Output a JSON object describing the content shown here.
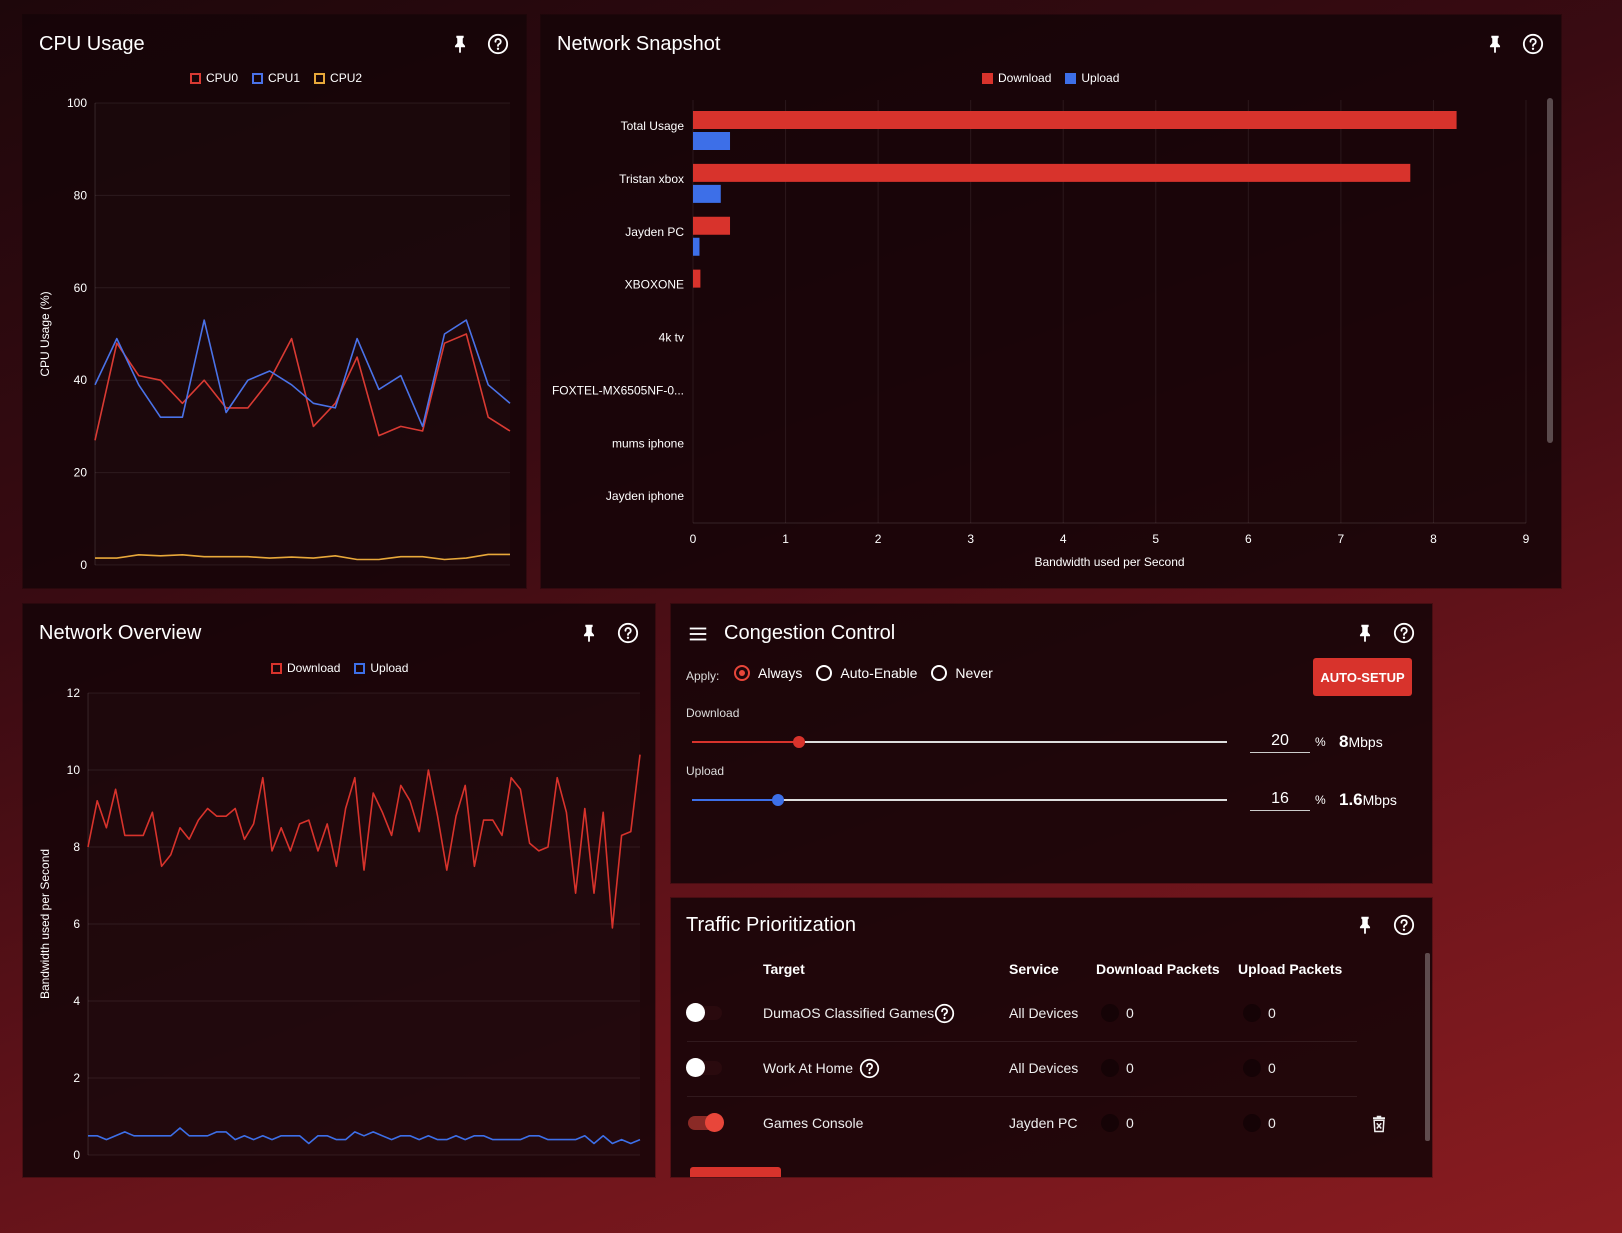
{
  "cpu": {
    "title": "CPU Usage",
    "chart_data": {
      "type": "line",
      "title": "",
      "xlabel": "",
      "ylabel": "CPU Usage (%)",
      "ylim": [
        0,
        100
      ],
      "yticks": [
        "0",
        "20",
        "40",
        "60",
        "80",
        "100"
      ],
      "legend_position": "top",
      "series": [
        {
          "name": "CPU0",
          "color": "#d93a33",
          "values": [
            27,
            48,
            41,
            40,
            35,
            40,
            34,
            34,
            40,
            49,
            30,
            35,
            45,
            28,
            30,
            29,
            48,
            50,
            32,
            29
          ]
        },
        {
          "name": "CPU1",
          "color": "#4a72e8",
          "values": [
            39,
            49,
            39,
            32,
            32,
            53,
            33,
            40,
            42,
            39,
            35,
            34,
            49,
            38,
            41,
            30,
            50,
            53,
            39,
            35
          ]
        },
        {
          "name": "CPU2",
          "color": "#e8a83a",
          "values": [
            1.5,
            1.5,
            2.2,
            2.0,
            2.2,
            1.8,
            1.8,
            1.8,
            1.5,
            1.7,
            1.5,
            2.0,
            1.2,
            1.2,
            1.8,
            1.8,
            1.2,
            1.5,
            2.3,
            2.3
          ]
        }
      ]
    }
  },
  "snapshot": {
    "title": "Network Snapshot",
    "chart_data": {
      "type": "bar",
      "orientation": "horizontal",
      "title": "",
      "xlabel": "Bandwidth used per Second",
      "ylabel": "",
      "xlim": [
        0,
        9
      ],
      "xticks": [
        "0",
        "1",
        "2",
        "3",
        "4",
        "5",
        "6",
        "7",
        "8",
        "9"
      ],
      "categories": [
        "Total Usage",
        "Tristan xbox",
        "Jayden PC",
        "XBOXONE",
        "4k tv",
        "FOXTEL-MX6505NF-0...",
        "mums iphone",
        "Jayden iphone"
      ],
      "legend_position": "top",
      "series": [
        {
          "name": "Download",
          "color": "#d8332c",
          "values": [
            8.25,
            7.75,
            0.4,
            0.08,
            0,
            0,
            0,
            0
          ]
        },
        {
          "name": "Upload",
          "color": "#3d6fe8",
          "values": [
            0.4,
            0.3,
            0.07,
            0,
            0,
            0,
            0,
            0
          ]
        }
      ]
    }
  },
  "overview": {
    "title": "Network Overview",
    "chart_data": {
      "type": "line",
      "title": "",
      "xlabel": "",
      "ylabel": "Bandwidth used per Second",
      "ylim": [
        0,
        12
      ],
      "yticks": [
        "0",
        "2",
        "4",
        "6",
        "8",
        "10",
        "12"
      ],
      "legend_position": "top",
      "series": [
        {
          "name": "Download",
          "color": "#d8332c",
          "values": [
            8.0,
            9.2,
            8.5,
            9.5,
            8.3,
            8.3,
            8.3,
            8.9,
            7.5,
            7.8,
            8.5,
            8.2,
            8.7,
            9.0,
            8.8,
            8.8,
            9.0,
            8.2,
            8.6,
            9.8,
            7.9,
            8.5,
            7.9,
            8.6,
            8.7,
            7.9,
            8.6,
            7.5,
            9.0,
            9.8,
            7.4,
            9.4,
            8.9,
            8.3,
            9.6,
            9.2,
            8.4,
            10.0,
            8.8,
            7.4,
            8.8,
            9.6,
            7.5,
            8.7,
            8.7,
            8.3,
            9.8,
            9.5,
            8.1,
            7.9,
            8.0,
            9.8,
            8.9,
            6.8,
            9.0,
            6.8,
            8.9,
            5.9,
            8.3,
            8.4,
            10.4
          ]
        },
        {
          "name": "Upload",
          "color": "#3d6fe8",
          "values": [
            0.5,
            0.5,
            0.4,
            0.5,
            0.6,
            0.5,
            0.5,
            0.5,
            0.5,
            0.5,
            0.7,
            0.5,
            0.5,
            0.5,
            0.6,
            0.6,
            0.4,
            0.5,
            0.4,
            0.5,
            0.4,
            0.5,
            0.5,
            0.5,
            0.3,
            0.5,
            0.5,
            0.4,
            0.4,
            0.6,
            0.5,
            0.6,
            0.5,
            0.4,
            0.5,
            0.5,
            0.4,
            0.5,
            0.4,
            0.4,
            0.5,
            0.4,
            0.5,
            0.5,
            0.4,
            0.4,
            0.4,
            0.4,
            0.5,
            0.5,
            0.4,
            0.4,
            0.4,
            0.4,
            0.5,
            0.3,
            0.5,
            0.3,
            0.4,
            0.3,
            0.4
          ]
        }
      ]
    }
  },
  "congestion": {
    "title": "Congestion Control",
    "apply_label": "Apply:",
    "options": [
      "Always",
      "Auto-Enable",
      "Never"
    ],
    "selected": "Always",
    "auto_setup_label": "AUTO-SETUP",
    "download": {
      "label": "Download",
      "percent": "20",
      "fraction": 0.2,
      "percent_sign": "%",
      "speed": "8",
      "unit": "Mbps",
      "color": "#d8332c"
    },
    "upload": {
      "label": "Upload",
      "percent": "16",
      "fraction": 0.16,
      "percent_sign": "%",
      "speed": "1.6",
      "unit": "Mbps",
      "color": "#3d6fe8"
    }
  },
  "traffic": {
    "title": "Traffic Prioritization",
    "headers": {
      "target": "Target",
      "service": "Service",
      "download": "Download Packets",
      "upload": "Upload Packets"
    },
    "rows": [
      {
        "enabled": false,
        "target": "DumaOS Classified Games",
        "help": true,
        "service": "All Devices",
        "download": "0",
        "upload": "0",
        "deletable": false
      },
      {
        "enabled": false,
        "target": "Work At Home",
        "help": true,
        "service": "All Devices",
        "download": "0",
        "upload": "0",
        "deletable": false
      },
      {
        "enabled": true,
        "target": "Games Console",
        "help": false,
        "service": "Jayden PC",
        "download": "0",
        "upload": "0",
        "deletable": true
      }
    ]
  },
  "colors": {
    "accent": "#d8332c",
    "blue": "#3d6fe8",
    "yellow": "#e8a83a"
  }
}
